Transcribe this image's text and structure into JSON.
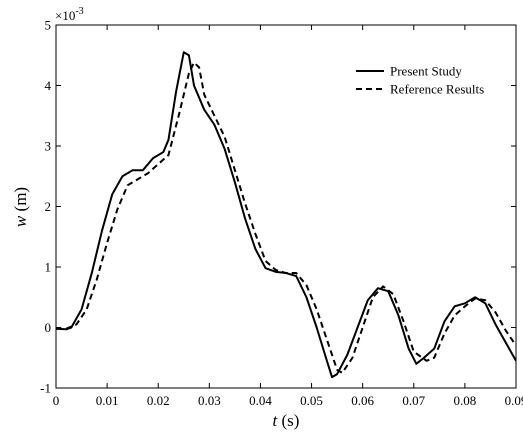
{
  "chart_data": {
    "type": "line",
    "xlabel_var": "t",
    "xlabel_unit": " (s)",
    "ylabel_var": "w",
    "ylabel_unit": " (m)",
    "y_scale_label": "×10",
    "y_scale_exp": "-3",
    "xlim": [
      0,
      0.09
    ],
    "ylim": [
      -1,
      5
    ],
    "x_ticks": [
      0,
      0.01,
      0.02,
      0.03,
      0.04,
      0.05,
      0.06,
      0.07,
      0.08,
      0.09
    ],
    "x_tick_labels": [
      "0",
      "0.01",
      "0.02",
      "0.03",
      "0.04",
      "0.05",
      "0.06",
      "0.07",
      "0.08",
      "0.09"
    ],
    "y_ticks": [
      -1,
      0,
      1,
      2,
      3,
      4,
      5
    ],
    "y_tick_labels": [
      "-1",
      "0",
      "1",
      "2",
      "3",
      "4",
      "5"
    ],
    "grid": false,
    "legend_position": "top-right",
    "series": [
      {
        "name": "Present Study",
        "style": "solid",
        "color": "#000000",
        "points": [
          [
            0,
            -0.02
          ],
          [
            0.002,
            -0.03
          ],
          [
            0.003,
            0.0
          ],
          [
            0.005,
            0.3
          ],
          [
            0.007,
            0.9
          ],
          [
            0.009,
            1.6
          ],
          [
            0.011,
            2.2
          ],
          [
            0.013,
            2.5
          ],
          [
            0.015,
            2.6
          ],
          [
            0.017,
            2.6
          ],
          [
            0.019,
            2.8
          ],
          [
            0.021,
            2.9
          ],
          [
            0.022,
            3.1
          ],
          [
            0.0235,
            3.9
          ],
          [
            0.025,
            4.55
          ],
          [
            0.026,
            4.5
          ],
          [
            0.027,
            4.0
          ],
          [
            0.029,
            3.6
          ],
          [
            0.031,
            3.35
          ],
          [
            0.033,
            2.95
          ],
          [
            0.035,
            2.4
          ],
          [
            0.037,
            1.8
          ],
          [
            0.039,
            1.3
          ],
          [
            0.041,
            0.98
          ],
          [
            0.043,
            0.92
          ],
          [
            0.045,
            0.9
          ],
          [
            0.047,
            0.85
          ],
          [
            0.049,
            0.5
          ],
          [
            0.051,
            0.0
          ],
          [
            0.053,
            -0.55
          ],
          [
            0.054,
            -0.82
          ],
          [
            0.055,
            -0.77
          ],
          [
            0.057,
            -0.45
          ],
          [
            0.059,
            0.0
          ],
          [
            0.061,
            0.45
          ],
          [
            0.063,
            0.65
          ],
          [
            0.065,
            0.6
          ],
          [
            0.067,
            0.2
          ],
          [
            0.069,
            -0.35
          ],
          [
            0.0705,
            -0.6
          ],
          [
            0.072,
            -0.5
          ],
          [
            0.074,
            -0.35
          ],
          [
            0.076,
            0.1
          ],
          [
            0.078,
            0.35
          ],
          [
            0.08,
            0.4
          ],
          [
            0.082,
            0.5
          ],
          [
            0.084,
            0.4
          ],
          [
            0.086,
            0.05
          ],
          [
            0.088,
            -0.25
          ],
          [
            0.09,
            -0.55
          ]
        ]
      },
      {
        "name": "Reference Results",
        "style": "dashed",
        "color": "#000000",
        "points": [
          [
            0,
            -0.02
          ],
          [
            0.002,
            -0.02
          ],
          [
            0.004,
            0.05
          ],
          [
            0.006,
            0.3
          ],
          [
            0.008,
            0.8
          ],
          [
            0.01,
            1.4
          ],
          [
            0.012,
            1.95
          ],
          [
            0.014,
            2.35
          ],
          [
            0.016,
            2.45
          ],
          [
            0.018,
            2.55
          ],
          [
            0.02,
            2.7
          ],
          [
            0.022,
            2.85
          ],
          [
            0.024,
            3.5
          ],
          [
            0.026,
            4.2
          ],
          [
            0.027,
            4.38
          ],
          [
            0.028,
            4.3
          ],
          [
            0.029,
            3.85
          ],
          [
            0.031,
            3.5
          ],
          [
            0.033,
            3.15
          ],
          [
            0.035,
            2.6
          ],
          [
            0.037,
            2.05
          ],
          [
            0.039,
            1.55
          ],
          [
            0.041,
            1.1
          ],
          [
            0.043,
            0.95
          ],
          [
            0.045,
            0.9
          ],
          [
            0.047,
            0.9
          ],
          [
            0.049,
            0.7
          ],
          [
            0.051,
            0.3
          ],
          [
            0.053,
            -0.2
          ],
          [
            0.055,
            -0.7
          ],
          [
            0.056,
            -0.75
          ],
          [
            0.058,
            -0.5
          ],
          [
            0.06,
            0.0
          ],
          [
            0.062,
            0.5
          ],
          [
            0.064,
            0.68
          ],
          [
            0.066,
            0.55
          ],
          [
            0.068,
            0.1
          ],
          [
            0.07,
            -0.4
          ],
          [
            0.0725,
            -0.55
          ],
          [
            0.074,
            -0.5
          ],
          [
            0.076,
            -0.1
          ],
          [
            0.078,
            0.2
          ],
          [
            0.08,
            0.35
          ],
          [
            0.082,
            0.48
          ],
          [
            0.084,
            0.45
          ],
          [
            0.086,
            0.25
          ],
          [
            0.088,
            -0.05
          ],
          [
            0.09,
            -0.3
          ]
        ]
      }
    ]
  }
}
